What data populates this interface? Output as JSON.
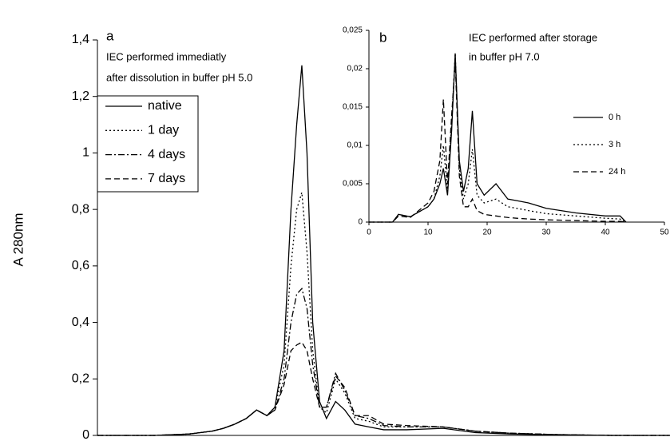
{
  "chart_data": [
    {
      "type": "line",
      "panel": "a",
      "annotation": [
        "IEC performed immediatly",
        "after dissolution in buffer pH 5.0"
      ],
      "y_label": "A 280nm",
      "x": [
        0,
        5,
        8,
        10,
        11,
        12,
        13,
        13.9,
        14.8,
        15.5,
        16.3,
        16.9,
        17.4,
        17.85,
        18.3,
        18.8,
        19.4,
        20,
        20.8,
        21.6,
        22.5,
        23.7,
        25,
        27,
        30.2,
        33,
        36,
        40,
        45,
        50
      ],
      "xlim": [
        0,
        50
      ],
      "ylim": [
        0,
        1.4
      ],
      "yticks": [
        0,
        {
          "value": 0.2,
          "label": "0,2"
        },
        {
          "value": 0.4,
          "label": "0,4"
        },
        {
          "value": 0.6,
          "label": "0,6"
        },
        {
          "value": 0.8,
          "label": "0,8"
        },
        1,
        {
          "value": 1.2,
          "label": "1,2"
        },
        {
          "value": 1.4,
          "label": "1,4"
        }
      ],
      "legend": "upper left",
      "series": [
        {
          "name": "native",
          "color": "#000000",
          "dash": "solid",
          "values": [
            0,
            0,
            0.005,
            0.015,
            0.025,
            0.04,
            0.06,
            0.09,
            0.07,
            0.1,
            0.3,
            0.8,
            1.1,
            1.31,
            1.0,
            0.4,
            0.12,
            0.06,
            0.12,
            0.09,
            0.04,
            0.03,
            0.02,
            0.02,
            0.025,
            0.01,
            0.005,
            0.002,
            0,
            0
          ]
        },
        {
          "name": "1 day",
          "color": "#000000",
          "dash": "dotted",
          "values": [
            0,
            0,
            0.005,
            0.015,
            0.025,
            0.04,
            0.06,
            0.09,
            0.07,
            0.1,
            0.25,
            0.6,
            0.8,
            0.86,
            0.65,
            0.3,
            0.1,
            0.08,
            0.2,
            0.15,
            0.06,
            0.05,
            0.03,
            0.03,
            0.03,
            0.015,
            0.008,
            0.003,
            0,
            0
          ]
        },
        {
          "name": "4 days",
          "color": "#000000",
          "dash": "dashdot",
          "values": [
            0,
            0,
            0.005,
            0.015,
            0.025,
            0.04,
            0.06,
            0.09,
            0.07,
            0.09,
            0.2,
            0.4,
            0.5,
            0.52,
            0.45,
            0.25,
            0.1,
            0.1,
            0.22,
            0.16,
            0.07,
            0.06,
            0.035,
            0.03,
            0.03,
            0.015,
            0.008,
            0.003,
            0,
            0
          ]
        },
        {
          "name": "7 days",
          "color": "#000000",
          "dash": "dashed",
          "values": [
            0,
            0,
            0.005,
            0.015,
            0.025,
            0.04,
            0.06,
            0.09,
            0.07,
            0.09,
            0.18,
            0.3,
            0.32,
            0.33,
            0.3,
            0.2,
            0.1,
            0.1,
            0.21,
            0.17,
            0.07,
            0.07,
            0.04,
            0.035,
            0.03,
            0.015,
            0.008,
            0.003,
            0,
            0
          ]
        }
      ]
    },
    {
      "type": "line",
      "panel": "b",
      "annotation": [
        "IEC performed after storage",
        "in buffer pH 7.0"
      ],
      "x": [
        0,
        4,
        5,
        7,
        10,
        11,
        12,
        12.6,
        13.3,
        14,
        14.6,
        15.3,
        16,
        16.8,
        17.5,
        18.3,
        19.5,
        21.5,
        23.5,
        25,
        27,
        30,
        35,
        40,
        42.5,
        43.5,
        50
      ],
      "xlim": [
        0,
        50
      ],
      "xticks": [
        0,
        10,
        20,
        30,
        40,
        50
      ],
      "ylim": [
        0,
        0.025
      ],
      "yticks": [
        0,
        {
          "value": 0.005,
          "label": "0,005"
        },
        {
          "value": 0.01,
          "label": "0,01"
        },
        {
          "value": 0.015,
          "label": "0,015"
        },
        {
          "value": 0.02,
          "label": "0,02"
        },
        {
          "value": 0.025,
          "label": "0,025"
        }
      ],
      "legend": "right",
      "series": [
        {
          "name": "0 h",
          "color": "#000000",
          "dash": "solid",
          "values": [
            0,
            0,
            0.001,
            0.0007,
            0.002,
            0.003,
            0.005,
            0.007,
            0.0035,
            0.012,
            0.022,
            0.008,
            0.004,
            0.007,
            0.0145,
            0.005,
            0.0035,
            0.005,
            0.003,
            0.0028,
            0.0025,
            0.0018,
            0.0012,
            0.0008,
            0.0008,
            0,
            null
          ]
        },
        {
          "name": "3 h",
          "color": "#000000",
          "dash": "dotted",
          "values": [
            0,
            0,
            0.001,
            0.0007,
            0.002,
            0.003,
            0.006,
            0.01,
            0.004,
            0.013,
            0.022,
            0.007,
            0.003,
            0.005,
            0.0095,
            0.0035,
            0.0025,
            0.003,
            0.002,
            0.0018,
            0.0015,
            0.0011,
            0.0008,
            0.0005,
            0.0004,
            0,
            null
          ]
        },
        {
          "name": "24 h",
          "color": "#000000",
          "dash": "dashed",
          "values": [
            0,
            0,
            0.0008,
            0.0006,
            0.0025,
            0.004,
            0.008,
            0.016,
            0.005,
            0.014,
            0.021,
            0.006,
            0.002,
            0.002,
            0.003,
            0.0015,
            0.001,
            0.0008,
            0.0006,
            0.0005,
            0.0004,
            0.0003,
            0.0002,
            0.0001,
            0.0001,
            0,
            null
          ]
        }
      ]
    }
  ]
}
